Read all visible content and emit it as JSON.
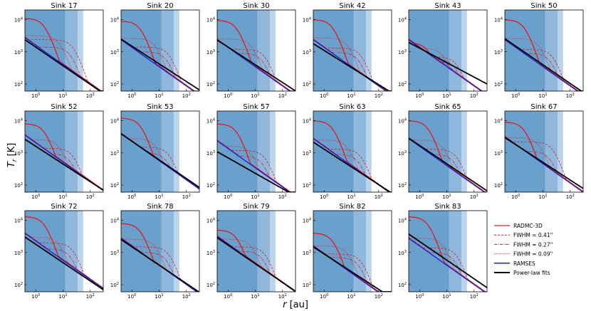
{
  "figure": {
    "ylabel_main": "T",
    "ylabel_sub": "r",
    "ylabel_unit": " [K]",
    "xlabel_main": "r",
    "xlabel_unit": " [au]"
  },
  "colors": {
    "band_inner": "#6aa0cc",
    "band_mid": "#8fb8dc",
    "band_outer": "#bcd4ea",
    "radmc": "#e31a1c",
    "ramses": "#1f1fcf",
    "fit": "#000000"
  },
  "legend": [
    {
      "label": "RADMC-3D",
      "style": "solid-red"
    },
    {
      "label": "FWHM = 0.41''",
      "style": "dashed-red"
    },
    {
      "label": "FWHM = 0.27''",
      "style": "dashdot-red"
    },
    {
      "label": "FWHM = 0.09''",
      "style": "dotted-red"
    },
    {
      "label": "RAMSES",
      "style": "solid-blue"
    },
    {
      "label": "Power-law fits",
      "style": "solid-black"
    }
  ],
  "chart_data": {
    "type": "line",
    "xscale": "log",
    "yscale": "log",
    "xlim": [
      0.4,
      300
    ],
    "ylim": [
      60,
      20000
    ],
    "xticks": [
      "10^0",
      "10^1",
      "10^2"
    ],
    "yticks": [
      "10^2",
      "10^3",
      "10^4"
    ],
    "shaded_bands_au": [
      12,
      35,
      55
    ],
    "panels": [
      {
        "title": "Sink 17",
        "radmc_t0": 11000,
        "f41": 2400,
        "f27": 1400,
        "f09": 3200,
        "ramses_t0": 430,
        "fit_t0": 1400,
        "fit_slope": -0.58,
        "t_end": 70
      },
      {
        "title": "Sink 20",
        "radmc_t0": 9000,
        "f41": 1400,
        "f27": 1000,
        "f09": 2600,
        "ramses_t0": 480,
        "fit_t0": 1500,
        "fit_slope": -0.55,
        "t_end": 60
      },
      {
        "title": "Sink 30",
        "radmc_t0": 9500,
        "f41": 1200,
        "f27": 900,
        "f09": 2500,
        "ramses_t0": 420,
        "fit_t0": 1400,
        "fit_slope": -0.55,
        "t_end": 60
      },
      {
        "title": "Sink 42",
        "radmc_t0": 10000,
        "f41": 1300,
        "f27": 950,
        "f09": 2700,
        "ramses_t0": 400,
        "fit_t0": 1100,
        "fit_slope": -0.53,
        "t_end": 60
      },
      {
        "title": "Sink 43",
        "radmc_t0": 1900,
        "f41": 700,
        "f27": 600,
        "f09": 1300,
        "ramses_t0": 500,
        "fit_t0": 1300,
        "fit_slope": -0.45,
        "t_end": 60
      },
      {
        "title": "Sink 50",
        "radmc_t0": 10000,
        "f41": 1200,
        "f27": 900,
        "f09": 2600,
        "ramses_t0": 420,
        "fit_t0": 1500,
        "fit_slope": -0.58,
        "t_end": 60
      },
      {
        "title": "Sink 52",
        "radmc_t0": 8000,
        "f41": 1400,
        "f27": 950,
        "f09": 2600,
        "ramses_t0": 420,
        "fit_t0": 1600,
        "fit_slope": -0.55,
        "t_end": 90
      },
      {
        "title": "Sink 53",
        "radmc_t0": 12000,
        "f41": 1500,
        "f27": 1000,
        "f09": 2800,
        "ramses_t0": 500,
        "fit_t0": 2300,
        "fit_slope": -0.58,
        "t_end": 100
      },
      {
        "title": "Sink 57",
        "radmc_t0": 8000,
        "f41": 1200,
        "f27": 800,
        "f09": 1600,
        "ramses_t0": 250,
        "fit_t0": 700,
        "fit_slope": -0.48,
        "t_end": 60
      },
      {
        "title": "Sink 63",
        "radmc_t0": 10000,
        "f41": 1300,
        "f27": 900,
        "f09": 2500,
        "ramses_t0": 300,
        "fit_t0": 1300,
        "fit_slope": -0.55,
        "t_end": 70
      },
      {
        "title": "Sink 65",
        "radmc_t0": 10000,
        "f41": 1300,
        "f27": 900,
        "f09": 2500,
        "ramses_t0": 550,
        "fit_t0": 1700,
        "fit_slope": -0.57,
        "t_end": 70
      },
      {
        "title": "Sink 67",
        "radmc_t0": 9000,
        "f41": 2200,
        "f27": 1100,
        "f09": 3000,
        "ramses_t0": 600,
        "fit_t0": 1800,
        "fit_slope": -0.55,
        "t_end": 80
      },
      {
        "title": "Sink 72",
        "radmc_t0": 13000,
        "f41": 2000,
        "f27": 1300,
        "f09": 3000,
        "ramses_t0": 550,
        "fit_t0": 1800,
        "fit_slope": -0.57,
        "t_end": 100
      },
      {
        "title": "Sink 78",
        "radmc_t0": 8000,
        "f41": 1500,
        "f27": 1000,
        "f09": 2600,
        "ramses_t0": 400,
        "fit_t0": 1500,
        "fit_slope": -0.57,
        "t_end": 70
      },
      {
        "title": "Sink 79",
        "radmc_t0": 5000,
        "f41": 1500,
        "f27": 1100,
        "f09": 2600,
        "ramses_t0": 500,
        "fit_t0": 1700,
        "fit_slope": -0.58,
        "t_end": 80
      },
      {
        "title": "Sink 82",
        "radmc_t0": 4000,
        "f41": 900,
        "f27": 700,
        "f09": 1600,
        "ramses_t0": 250,
        "fit_t0": 900,
        "fit_slope": -0.55,
        "t_end": 40
      },
      {
        "title": "Sink 83",
        "radmc_t0": 13000,
        "f41": 1400,
        "f27": 1000,
        "f09": 2800,
        "ramses_t0": 500,
        "fit_t0": 2200,
        "fit_slope": -0.58,
        "t_end": 70
      }
    ]
  }
}
